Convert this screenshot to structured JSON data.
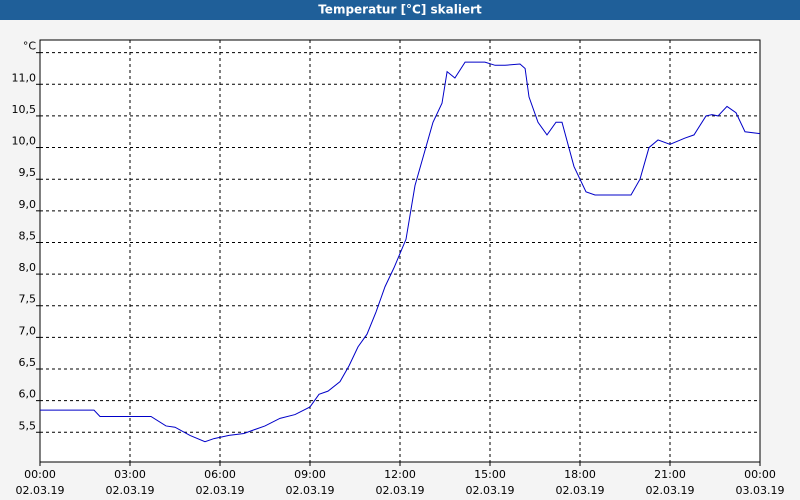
{
  "chart_data": {
    "type": "line",
    "title": "Temperatur [°C] skaliert",
    "x": [
      0,
      1.8,
      2,
      3.7,
      4.2,
      4.5,
      5,
      5.5,
      5.8,
      6.3,
      6.8,
      7.2,
      7.5,
      8,
      8.5,
      9,
      9.3,
      9.6,
      10,
      10.3,
      10.6,
      10.9,
      11.2,
      11.5,
      11.8,
      12.2,
      12.5,
      12.8,
      13.1,
      13.4,
      13.57,
      13.83,
      14.17,
      14.83,
      15.17,
      15.5,
      16.0,
      16.17,
      16.3,
      16.6,
      16.9,
      17.2,
      17.4,
      17.8,
      18.2,
      18.5,
      19.7,
      20.0,
      20.3,
      20.6,
      21.0,
      21.5,
      21.8,
      22.2,
      22.4,
      22.6,
      22.9,
      23.2,
      23.5,
      24
    ],
    "series": [
      {
        "name": "Temperatur",
        "color": "#0000c8",
        "values": [
          5.85,
          5.85,
          5.75,
          5.75,
          5.6,
          5.58,
          5.45,
          5.35,
          5.4,
          5.45,
          5.48,
          5.55,
          5.6,
          5.72,
          5.78,
          5.9,
          6.1,
          6.15,
          6.3,
          6.55,
          6.85,
          7.05,
          7.4,
          7.8,
          8.1,
          8.55,
          9.4,
          9.9,
          10.4,
          10.7,
          11.2,
          11.1,
          11.35,
          11.35,
          11.3,
          11.3,
          11.32,
          11.25,
          10.8,
          10.4,
          10.2,
          10.4,
          10.4,
          9.7,
          9.3,
          9.25,
          9.25,
          9.5,
          10.0,
          10.12,
          10.05,
          10.15,
          10.2,
          10.5,
          10.52,
          10.5,
          10.65,
          10.55,
          10.25,
          10.22
        ]
      }
    ],
    "xlim": [
      0,
      24
    ],
    "xticks": [
      {
        "value": 0,
        "label": [
          "00:00",
          "02.03.19"
        ]
      },
      {
        "value": 3,
        "label": [
          "03:00",
          "02.03.19"
        ]
      },
      {
        "value": 6,
        "label": [
          "06:00",
          "02.03.19"
        ]
      },
      {
        "value": 9,
        "label": [
          "09:00",
          "02.03.19"
        ]
      },
      {
        "value": 12,
        "label": [
          "12:00",
          "02.03.19"
        ]
      },
      {
        "value": 15,
        "label": [
          "15:00",
          "02.03.19"
        ]
      },
      {
        "value": 18,
        "label": [
          "18:00",
          "02.03.19"
        ]
      },
      {
        "value": 21,
        "label": [
          "21:00",
          "02.03.19"
        ]
      },
      {
        "value": 24,
        "label": [
          "00:00",
          "03.03.19"
        ]
      }
    ],
    "ylim": [
      5.03,
      11.7
    ],
    "yticks": [
      {
        "value": 5.5,
        "label": "5,5"
      },
      {
        "value": 6,
        "label": "6,0"
      },
      {
        "value": 6.5,
        "label": "6,5"
      },
      {
        "value": 7,
        "label": "7,0"
      },
      {
        "value": 7.5,
        "label": "7,5"
      },
      {
        "value": 8,
        "label": "8,0"
      },
      {
        "value": 8.5,
        "label": "8,5"
      },
      {
        "value": 9,
        "label": "9,0"
      },
      {
        "value": 9.5,
        "label": "9,5"
      },
      {
        "value": 10,
        "label": "10,0"
      },
      {
        "value": 10.5,
        "label": "10,5"
      },
      {
        "value": 11,
        "label": "11,0"
      },
      {
        "value": 11.5,
        "label": "°C"
      }
    ],
    "grid": true
  }
}
